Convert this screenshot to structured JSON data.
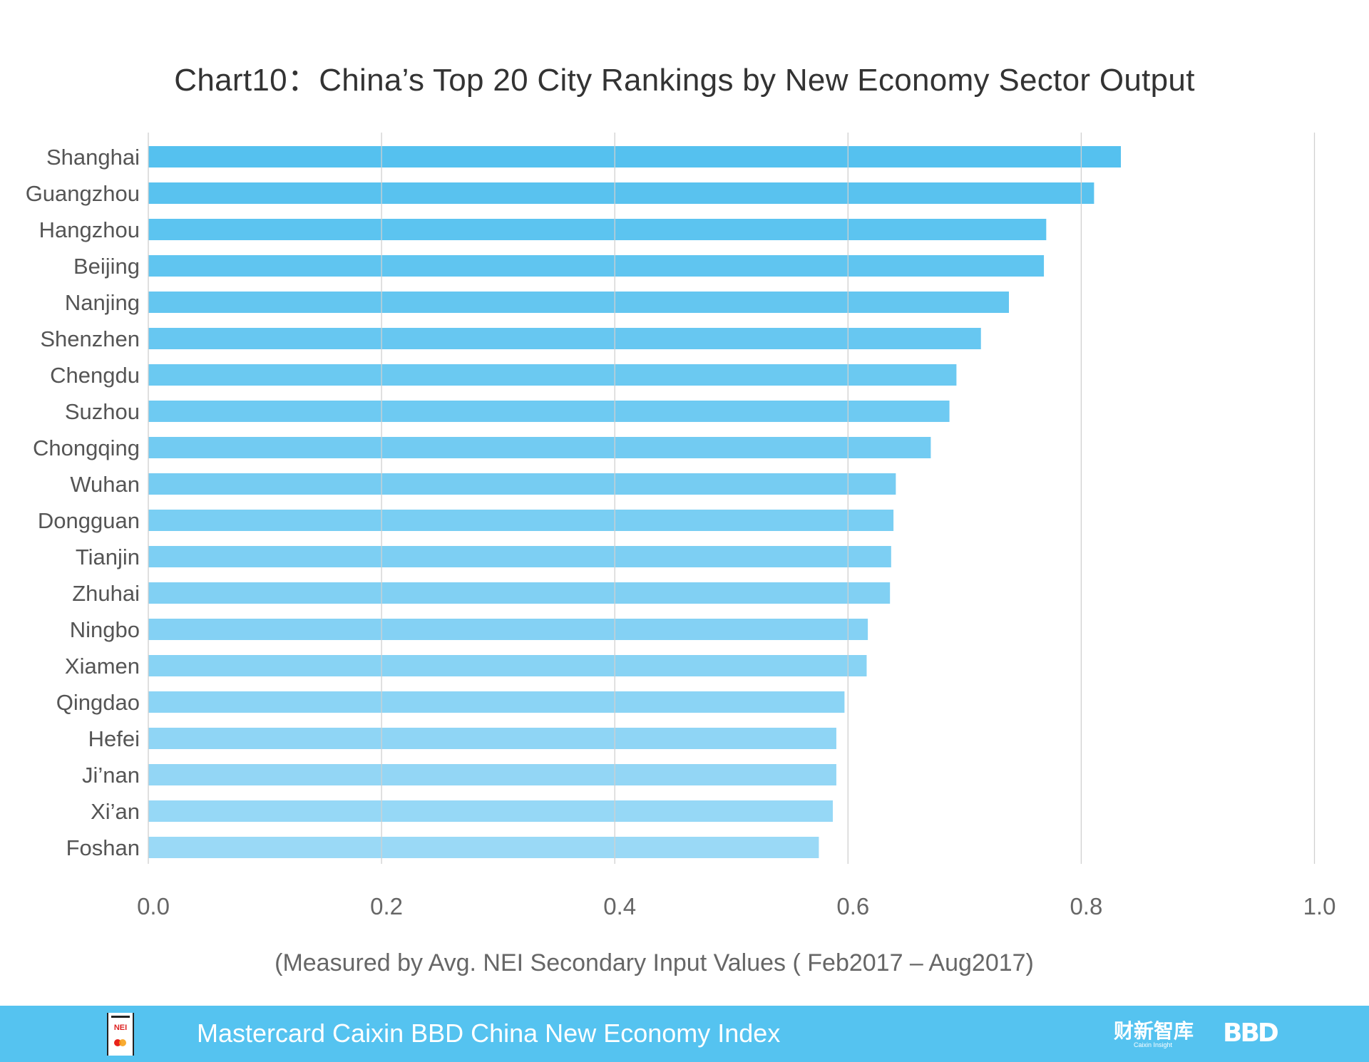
{
  "chart_data": {
    "type": "bar",
    "orientation": "horizontal",
    "title": "Chart10：China’s Top 20 City Rankings by New Economy Sector Output",
    "subtitle": "(Measured by Avg. NEI Secondary Input Values ( Feb2017 – Aug2017)",
    "categories": [
      "Shanghai",
      "Guangzhou",
      "Hangzhou",
      "Beijing",
      "Nanjing",
      "Shenzhen",
      "Chengdu",
      "Suzhou",
      "Chongqing",
      "Wuhan",
      "Dongguan",
      "Tianjin",
      "Zhuhai",
      "Ningbo",
      "Xiamen",
      "Qingdao",
      "Hefei",
      "Ji’nan",
      "Xi’an",
      "Foshan"
    ],
    "values": [
      0.834,
      0.811,
      0.77,
      0.768,
      0.738,
      0.714,
      0.693,
      0.687,
      0.671,
      0.641,
      0.639,
      0.637,
      0.636,
      0.617,
      0.616,
      0.597,
      0.59,
      0.59,
      0.587,
      0.575
    ],
    "xlim": [
      0,
      1.0
    ],
    "xticks": [
      "0.0",
      "0.2",
      "0.4",
      "0.6",
      "0.8",
      "1.0"
    ],
    "xlabel": "",
    "ylabel": "",
    "grid": "vertical",
    "colors": {
      "top": "#55c1ef",
      "bottom": "#9ad9f6",
      "grid": "#d0d0d0"
    }
  },
  "footer": {
    "text": "Mastercard Caixin BBD China New Economy Index",
    "background": "#55c3f0",
    "logos": {
      "nei": "NEI",
      "caixin": "财新智库",
      "caixin_sub": "Caixin Insight",
      "bbd": "BBD"
    }
  }
}
